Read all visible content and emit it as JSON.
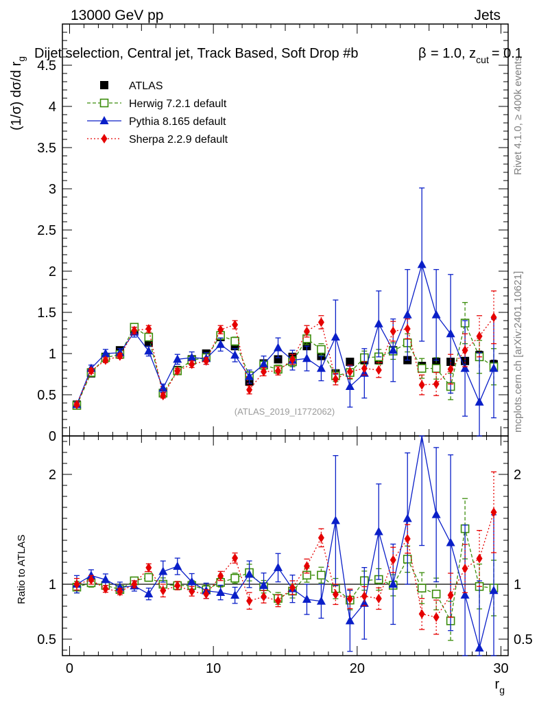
{
  "header": {
    "left": "13000 GeV pp",
    "right": "Jets"
  },
  "main_panel": {
    "title": "Dijet selection, Central jet, Track Based, Soft Drop #b",
    "title_tail": "= 1.0, z",
    "title_sub": "cut",
    "title_end": "= 0.1",
    "beta_symbol": "β",
    "ylabel_main": "(1/σ) dσ/d r",
    "ylabel_sub": "g",
    "analysis_id": "(ATLAS_2019_I1772062)"
  },
  "ratio_panel": {
    "ylabel": "Ratio to ATLAS"
  },
  "side_labels": {
    "rivet": "Rivet 4.1.0, ≥ 400k events",
    "mcplots": "mcplots.cern.ch [arXiv:2401.10621]"
  },
  "legend": [
    {
      "label": "ATLAS",
      "color": "#000000",
      "marker": "square"
    },
    {
      "label": "Herwig 7.2.1 default",
      "color": "#3a8c0a",
      "marker": "open-square"
    },
    {
      "label": "Pythia 8.165 default",
      "color": "#0a1fc8",
      "marker": "triangle"
    },
    {
      "label": "Sherpa 2.2.9 default",
      "color": "#e50000",
      "marker": "diamond"
    }
  ],
  "chart_data": {
    "type": "scatter",
    "xlabel": "r",
    "xlabel_sub": "g",
    "xlim": [
      -0.5,
      30.5
    ],
    "ylim_main": [
      0,
      5
    ],
    "ylim_ratio": [
      0.35,
      2.35
    ],
    "x_ticks": [
      0,
      10,
      20,
      30
    ],
    "y_ticks_main": [
      0,
      0.5,
      1,
      1.5,
      2,
      2.5,
      3,
      3.5,
      4,
      4.5
    ],
    "y_ticks_ratio": [
      0.5,
      1,
      2
    ],
    "x": [
      0.5,
      1.5,
      2.5,
      3.5,
      4.5,
      5.5,
      6.5,
      7.5,
      8.5,
      9.5,
      10.5,
      11.5,
      12.5,
      13.5,
      14.5,
      15.5,
      16.5,
      17.5,
      18.5,
      19.5,
      20.5,
      21.5,
      22.5,
      23.5,
      24.5,
      25.5,
      26.5,
      27.5,
      28.5,
      29.5
    ],
    "series": [
      {
        "name": "ATLAS",
        "values": [
          0.38,
          0.76,
          0.96,
          1.04,
          1.28,
          1.13,
          0.52,
          0.8,
          0.93,
          1.0,
          1.2,
          1.09,
          0.66,
          0.88,
          0.93,
          0.96,
          1.09,
          0.97,
          0.76,
          0.9,
          0.92,
          0.92,
          1.04,
          0.92,
          0.85,
          0.9,
          0.9,
          0.91,
          0.98,
          0.87
        ],
        "errors": [
          0.02,
          0.03,
          0.03,
          0.03,
          0.03,
          0.03,
          0.03,
          0.03,
          0.03,
          0.03,
          0.04,
          0.04,
          0.04,
          0.04,
          0.04,
          0.04,
          0.04,
          0.04,
          0.04,
          0.04,
          0.04,
          0.04,
          0.04,
          0.04,
          0.04,
          0.04,
          0.04,
          0.04,
          0.05,
          0.05
        ]
      },
      {
        "name": "Herwig 7.2.1 default",
        "values": [
          0.37,
          0.77,
          0.95,
          0.99,
          1.32,
          1.2,
          0.52,
          0.79,
          0.92,
          0.95,
          1.22,
          1.15,
          0.73,
          0.86,
          0.81,
          0.9,
          1.18,
          1.05,
          0.73,
          0.77,
          0.95,
          0.96,
          1.03,
          1.13,
          0.82,
          0.82,
          0.6,
          1.37,
          0.96,
          0.84
        ],
        "errors": [
          0.02,
          0.03,
          0.03,
          0.03,
          0.04,
          0.04,
          0.03,
          0.03,
          0.04,
          0.04,
          0.05,
          0.05,
          0.05,
          0.05,
          0.05,
          0.06,
          0.07,
          0.07,
          0.07,
          0.08,
          0.08,
          0.09,
          0.1,
          0.11,
          0.12,
          0.13,
          0.16,
          0.25,
          0.2,
          0.22
        ]
      },
      {
        "name": "Pythia 8.165 default",
        "values": [
          0.38,
          0.82,
          1.0,
          1.01,
          1.26,
          1.03,
          0.58,
          0.93,
          0.95,
          0.94,
          1.11,
          0.98,
          0.72,
          0.87,
          1.07,
          0.92,
          0.94,
          0.82,
          1.2,
          0.6,
          0.76,
          1.36,
          1.04,
          1.47,
          2.08,
          1.47,
          1.24,
          0.82,
          0.41,
          0.82
        ],
        "errors": [
          0.03,
          0.04,
          0.05,
          0.05,
          0.06,
          0.06,
          0.05,
          0.06,
          0.07,
          0.07,
          0.08,
          0.08,
          0.08,
          0.1,
          0.12,
          0.12,
          0.15,
          0.15,
          0.45,
          0.25,
          0.3,
          0.4,
          0.38,
          0.55,
          0.93,
          0.55,
          0.72,
          0.58,
          0.6,
          0.6
        ]
      },
      {
        "name": "Sherpa 2.2.9 default",
        "values": [
          0.38,
          0.79,
          0.92,
          0.97,
          1.28,
          1.3,
          0.49,
          0.79,
          0.87,
          0.91,
          1.29,
          1.35,
          0.56,
          0.78,
          0.79,
          0.93,
          1.27,
          1.38,
          0.69,
          0.78,
          0.82,
          0.8,
          1.27,
          1.3,
          0.62,
          0.63,
          0.81,
          1.04,
          1.21,
          1.44
        ],
        "errors": [
          0.02,
          0.03,
          0.03,
          0.03,
          0.04,
          0.04,
          0.03,
          0.03,
          0.04,
          0.04,
          0.05,
          0.05,
          0.05,
          0.05,
          0.05,
          0.06,
          0.07,
          0.08,
          0.07,
          0.08,
          0.08,
          0.09,
          0.12,
          0.12,
          0.12,
          0.14,
          0.18,
          0.2,
          0.25,
          0.32
        ]
      }
    ]
  }
}
